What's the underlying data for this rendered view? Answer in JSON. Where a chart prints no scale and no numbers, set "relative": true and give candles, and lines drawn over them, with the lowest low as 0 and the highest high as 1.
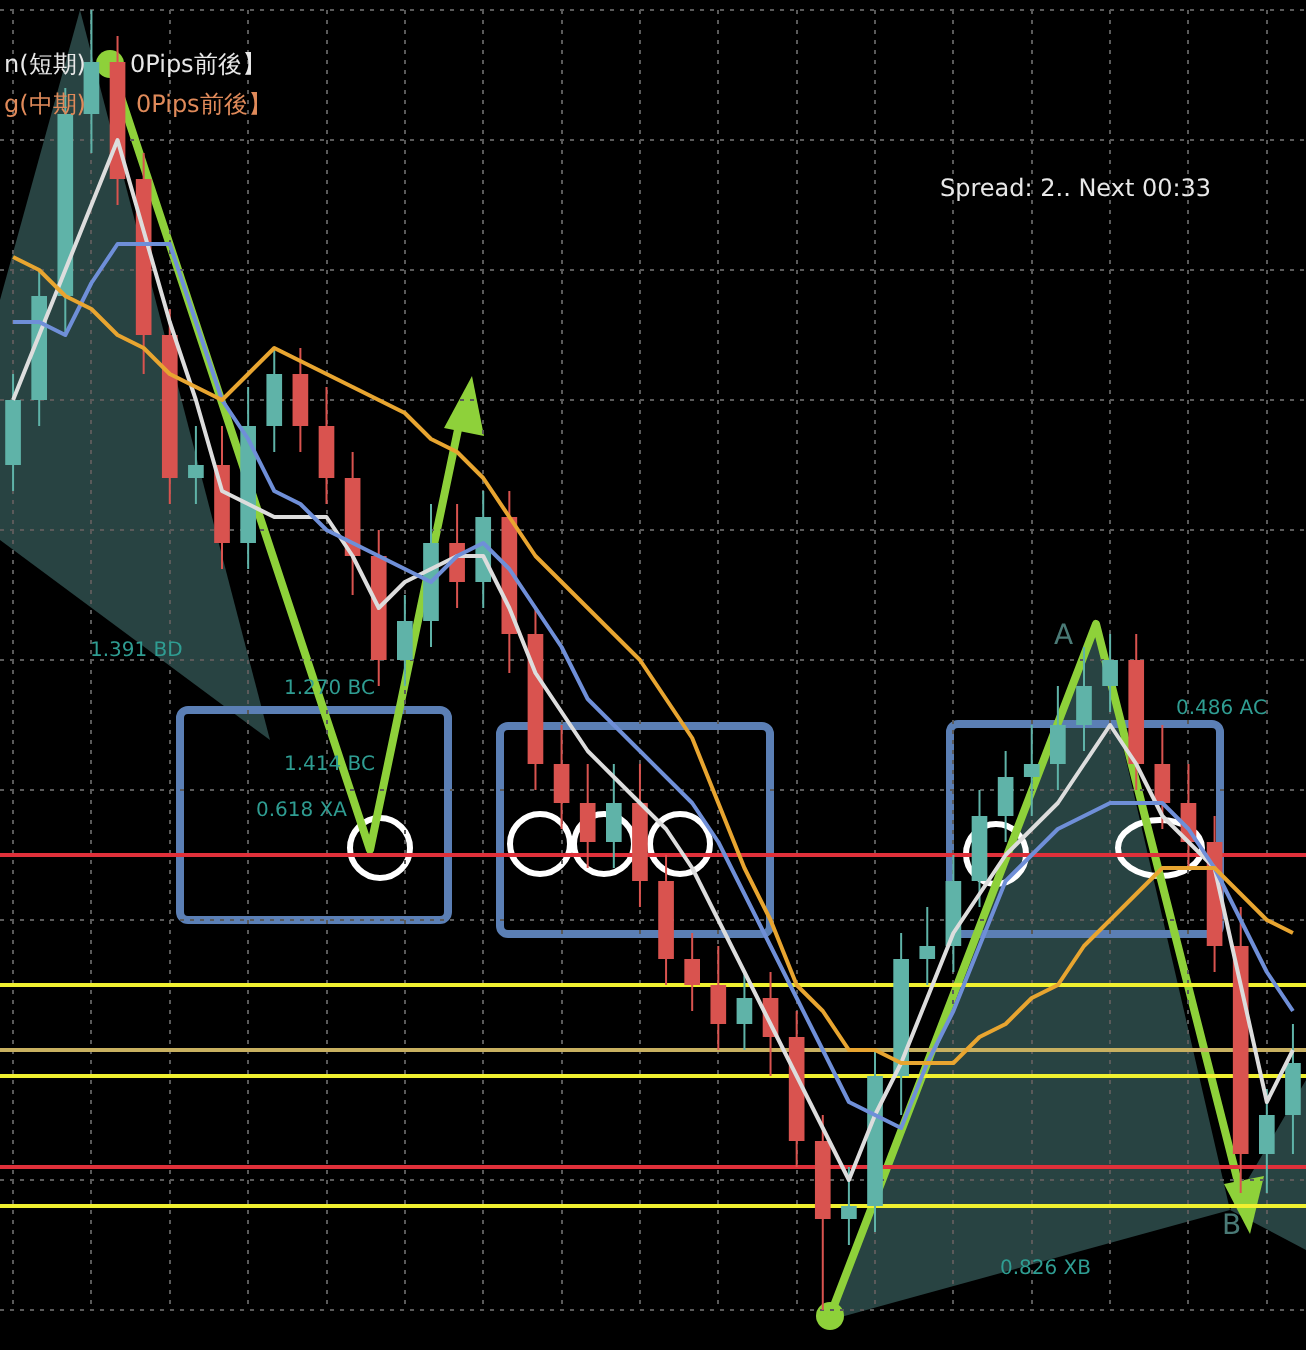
{
  "chart_data": {
    "type": "candlestick",
    "relative": true,
    "grid": true,
    "categories": [
      null,
      null,
      null,
      null,
      null,
      null,
      null,
      null,
      null,
      null,
      null,
      null,
      null,
      null,
      null,
      null,
      null,
      null,
      null,
      null,
      null,
      null,
      null,
      null,
      null,
      null,
      null,
      null,
      null,
      null,
      null,
      null,
      null,
      null,
      null,
      null,
      null,
      null,
      null,
      null,
      null,
      null,
      null,
      null,
      null,
      null,
      null,
      null,
      null,
      null
    ],
    "ohlc": [
      [
        0.65,
        0.72,
        0.63,
        0.7
      ],
      [
        0.7,
        0.8,
        0.68,
        0.78
      ],
      [
        0.78,
        0.94,
        0.75,
        0.92
      ],
      [
        0.92,
        1.0,
        0.89,
        0.96
      ],
      [
        0.96,
        0.98,
        0.85,
        0.87
      ],
      [
        0.87,
        0.89,
        0.72,
        0.75
      ],
      [
        0.75,
        0.77,
        0.62,
        0.64
      ],
      [
        0.64,
        0.68,
        0.62,
        0.65
      ],
      [
        0.65,
        0.68,
        0.57,
        0.59
      ],
      [
        0.59,
        0.71,
        0.57,
        0.68
      ],
      [
        0.68,
        0.74,
        0.66,
        0.72
      ],
      [
        0.72,
        0.74,
        0.66,
        0.68
      ],
      [
        0.68,
        0.71,
        0.62,
        0.64
      ],
      [
        0.64,
        0.66,
        0.55,
        0.58
      ],
      [
        0.58,
        0.6,
        0.48,
        0.5
      ],
      [
        0.5,
        0.55,
        0.48,
        0.53
      ],
      [
        0.53,
        0.62,
        0.51,
        0.59
      ],
      [
        0.59,
        0.62,
        0.54,
        0.56
      ],
      [
        0.56,
        0.63,
        0.54,
        0.61
      ],
      [
        0.61,
        0.63,
        0.49,
        0.52
      ],
      [
        0.52,
        0.54,
        0.4,
        0.42
      ],
      [
        0.42,
        0.45,
        0.37,
        0.39
      ],
      [
        0.39,
        0.42,
        0.34,
        0.36
      ],
      [
        0.36,
        0.42,
        0.34,
        0.39
      ],
      [
        0.39,
        0.42,
        0.31,
        0.33
      ],
      [
        0.33,
        0.35,
        0.25,
        0.27
      ],
      [
        0.27,
        0.29,
        0.23,
        0.25
      ],
      [
        0.25,
        0.28,
        0.2,
        0.22
      ],
      [
        0.22,
        0.26,
        0.2,
        0.24
      ],
      [
        0.24,
        0.26,
        0.18,
        0.21
      ],
      [
        0.21,
        0.23,
        0.11,
        0.13
      ],
      [
        0.13,
        0.15,
        0.0,
        0.07
      ],
      [
        0.07,
        0.11,
        0.05,
        0.08
      ],
      [
        0.08,
        0.2,
        0.06,
        0.18
      ],
      [
        0.18,
        0.29,
        0.15,
        0.27
      ],
      [
        0.27,
        0.31,
        0.25,
        0.28
      ],
      [
        0.28,
        0.35,
        0.26,
        0.33
      ],
      [
        0.33,
        0.4,
        0.31,
        0.38
      ],
      [
        0.38,
        0.43,
        0.36,
        0.41
      ],
      [
        0.41,
        0.45,
        0.38,
        0.42
      ],
      [
        0.42,
        0.48,
        0.4,
        0.45
      ],
      [
        0.45,
        0.51,
        0.43,
        0.48
      ],
      [
        0.48,
        0.52,
        0.46,
        0.5
      ],
      [
        0.5,
        0.52,
        0.4,
        0.42
      ],
      [
        0.42,
        0.45,
        0.37,
        0.39
      ],
      [
        0.39,
        0.42,
        0.34,
        0.36
      ],
      [
        0.36,
        0.38,
        0.26,
        0.28
      ],
      [
        0.28,
        0.31,
        0.09,
        0.12
      ],
      [
        0.12,
        0.17,
        0.09,
        0.15
      ],
      [
        0.15,
        0.22,
        0.12,
        0.19
      ]
    ],
    "colors": [
      "#5fb3a8",
      "#5fb3a8",
      "#5fb3a8",
      "#5fb3a8",
      "#d9534f",
      "#d9534f",
      "#d9534f",
      "#5fb3a8",
      "#d9534f",
      "#5fb3a8",
      "#5fb3a8",
      "#d9534f",
      "#d9534f",
      "#d9534f",
      "#d9534f",
      "#5fb3a8",
      "#5fb3a8",
      "#d9534f",
      "#5fb3a8",
      "#d9534f",
      "#d9534f",
      "#d9534f",
      "#d9534f",
      "#5fb3a8",
      "#d9534f",
      "#d9534f",
      "#d9534f",
      "#d9534f",
      "#5fb3a8",
      "#d9534f",
      "#d9534f",
      "#d9534f",
      "#5fb3a8",
      "#5fb3a8",
      "#5fb3a8",
      "#5fb3a8",
      "#5fb3a8",
      "#5fb3a8",
      "#5fb3a8",
      "#5fb3a8",
      "#5fb3a8",
      "#5fb3a8",
      "#5fb3a8",
      "#d9534f",
      "#d9534f",
      "#d9534f",
      "#d9534f",
      "#d9534f",
      "#5fb3a8",
      "#5fb3a8"
    ],
    "series": [
      {
        "type": "line",
        "color": "#e8a530",
        "values": [
          0.81,
          0.8,
          0.78,
          0.77,
          0.75,
          0.74,
          0.72,
          0.71,
          0.7,
          0.72,
          0.74,
          0.73,
          0.72,
          0.71,
          0.7,
          0.69,
          0.67,
          0.66,
          0.64,
          0.61,
          0.58,
          0.56,
          0.54,
          0.52,
          0.5,
          0.47,
          0.44,
          0.39,
          0.34,
          0.3,
          0.25,
          0.23,
          0.2,
          0.2,
          0.19,
          0.19,
          0.19,
          0.21,
          0.22,
          0.24,
          0.25,
          0.28,
          0.3,
          0.32,
          0.34,
          0.34,
          0.34,
          0.32,
          0.3,
          0.29
        ]
      },
      {
        "type": "line",
        "color": "#6f8fd8",
        "values": [
          0.76,
          0.76,
          0.75,
          0.79,
          0.82,
          0.82,
          0.82,
          0.76,
          0.7,
          0.67,
          0.63,
          0.62,
          0.6,
          0.59,
          0.58,
          0.57,
          0.56,
          0.58,
          0.59,
          0.57,
          0.54,
          0.51,
          0.47,
          0.45,
          0.43,
          0.41,
          0.39,
          0.36,
          0.32,
          0.28,
          0.24,
          0.2,
          0.16,
          0.15,
          0.14,
          0.19,
          0.23,
          0.28,
          0.33,
          0.35,
          0.37,
          0.38,
          0.39,
          0.39,
          0.39,
          0.37,
          0.34,
          0.3,
          0.26,
          0.23
        ]
      },
      {
        "type": "line",
        "color": "#dddddd",
        "values": [
          0.7,
          0.75,
          0.8,
          0.85,
          0.9,
          0.83,
          0.76,
          0.7,
          0.63,
          0.62,
          0.61,
          0.61,
          0.61,
          0.58,
          0.54,
          0.56,
          0.57,
          0.58,
          0.58,
          0.54,
          0.49,
          0.46,
          0.43,
          0.41,
          0.39,
          0.37,
          0.34,
          0.3,
          0.26,
          0.22,
          0.18,
          0.14,
          0.1,
          0.15,
          0.19,
          0.24,
          0.29,
          0.32,
          0.35,
          0.37,
          0.39,
          0.42,
          0.45,
          0.42,
          0.38,
          0.36,
          0.34,
          0.25,
          0.16,
          0.2
        ]
      }
    ],
    "ref_lines": [
      {
        "axis": "y",
        "value": 0.35,
        "color": "#e0303a"
      },
      {
        "axis": "y",
        "value": 0.25,
        "color": "#f0f030"
      },
      {
        "axis": "y",
        "value": 0.2,
        "color": "#c8b060"
      },
      {
        "axis": "y",
        "value": 0.18,
        "color": "#f0f030"
      },
      {
        "axis": "y",
        "value": 0.11,
        "color": "#e0303a"
      },
      {
        "axis": "y",
        "value": 0.08,
        "color": "#f0f030"
      }
    ],
    "annotations": [
      "n(短期)",
      "0Pips前後】",
      "g(中期)",
      "0Pips前後】",
      "Spread: 2.. Next 00:33",
      "1.391 BD",
      "1.270 BC",
      "1.414 BC",
      "0.618 XA",
      "0.486 AC",
      "0.826 XB",
      "A",
      "B"
    ]
  }
}
